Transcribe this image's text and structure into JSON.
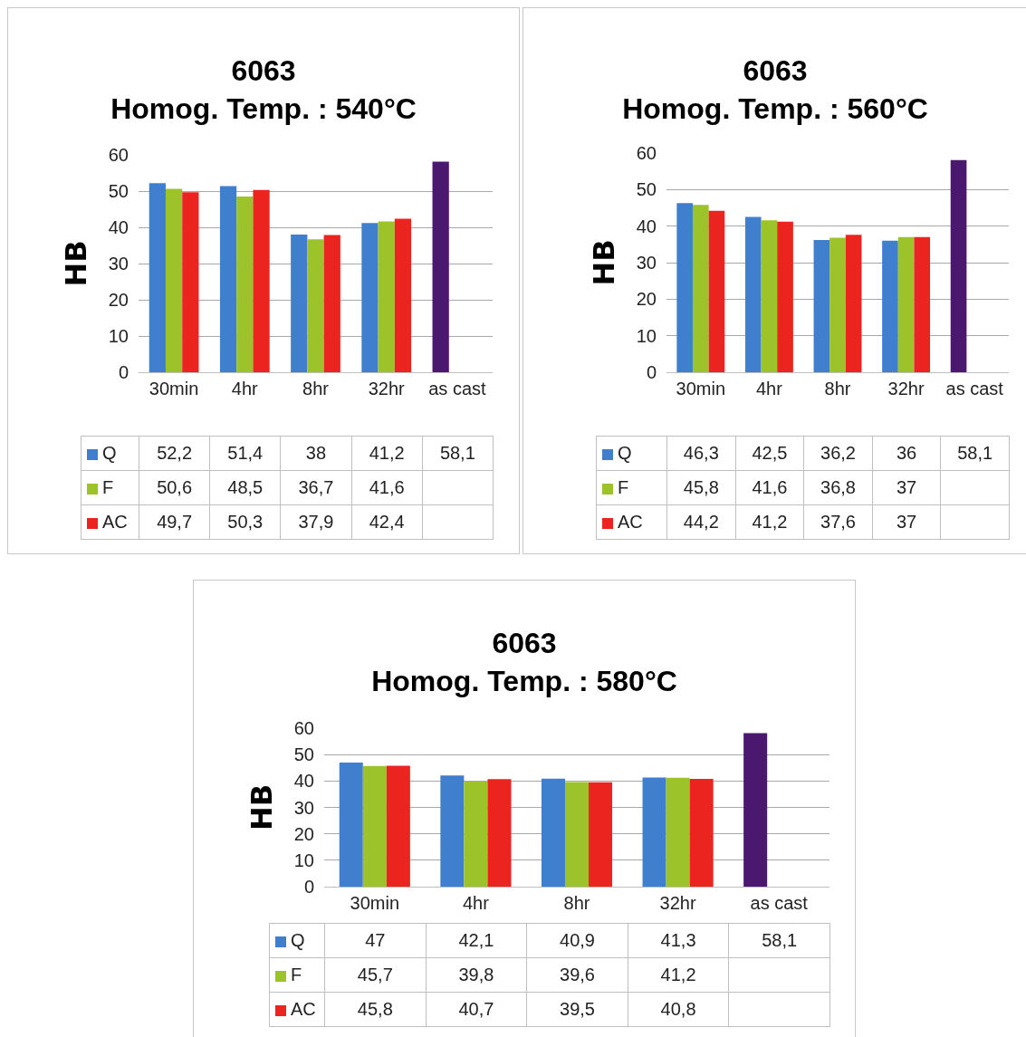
{
  "chart_data": [
    {
      "type": "bar",
      "title": "6063\nHomog. Temp. : 540°C",
      "ylabel": "HB",
      "categories": [
        "30min",
        "4hr",
        "8hr",
        "32hr",
        "as cast"
      ],
      "ylim": [
        0,
        60
      ],
      "yticks": [
        0,
        10,
        20,
        30,
        40,
        50,
        60
      ],
      "grid": "y",
      "legend": "bottom left",
      "series": [
        {
          "name": "Q",
          "color": "#3f7fce",
          "colors": [
            "#3f7fce",
            "#3f7fce",
            "#3f7fce",
            "#3f7fce",
            "#4b1870"
          ],
          "values": [
            52.2,
            51.4,
            38,
            41.2,
            58.1
          ],
          "value_labels": [
            "52,2",
            "51,4",
            "38",
            "41,2",
            "58,1"
          ]
        },
        {
          "name": "F",
          "color": "#9cc32a",
          "values": [
            50.6,
            48.5,
            36.7,
            41.6,
            null
          ],
          "value_labels": [
            "50,6",
            "48,5",
            "36,7",
            "41,6",
            null
          ]
        },
        {
          "name": "AC",
          "color": "#ec2420",
          "values": [
            49.7,
            50.3,
            37.9,
            42.4,
            null
          ],
          "value_labels": [
            "49,7",
            "50,3",
            "37,9",
            "42,4",
            null
          ]
        }
      ]
    },
    {
      "type": "bar",
      "title": "6063\nHomog. Temp. : 560°C",
      "ylabel": "HB",
      "categories": [
        "30min",
        "4hr",
        "8hr",
        "32hr",
        "as cast"
      ],
      "ylim": [
        0,
        60
      ],
      "yticks": [
        0,
        10,
        20,
        30,
        40,
        50,
        60
      ],
      "grid": "y",
      "legend": "bottom left",
      "series": [
        {
          "name": "Q",
          "color": "#3f7fce",
          "colors": [
            "#3f7fce",
            "#3f7fce",
            "#3f7fce",
            "#3f7fce",
            "#4b1870"
          ],
          "values": [
            46.3,
            42.5,
            36.2,
            36,
            58.1
          ],
          "value_labels": [
            "46,3",
            "42,5",
            "36,2",
            "36",
            "58,1"
          ]
        },
        {
          "name": "F",
          "color": "#9cc32a",
          "values": [
            45.8,
            41.6,
            36.8,
            37,
            null
          ],
          "value_labels": [
            "45,8",
            "41,6",
            "36,8",
            "37",
            null
          ]
        },
        {
          "name": "AC",
          "color": "#ec2420",
          "values": [
            44.2,
            41.2,
            37.6,
            37,
            null
          ],
          "value_labels": [
            "44,2",
            "41,2",
            "37,6",
            "37",
            null
          ]
        }
      ]
    },
    {
      "type": "bar",
      "title": "6063\nHomog. Temp. : 580°C",
      "ylabel": "HB",
      "categories": [
        "30min",
        "4hr",
        "8hr",
        "32hr",
        "as cast"
      ],
      "ylim": [
        0,
        60
      ],
      "yticks": [
        0,
        10,
        20,
        30,
        40,
        50,
        60
      ],
      "grid": "y",
      "legend": "bottom left",
      "series": [
        {
          "name": "Q",
          "color": "#3f7fce",
          "colors": [
            "#3f7fce",
            "#3f7fce",
            "#3f7fce",
            "#3f7fce",
            "#4b1870"
          ],
          "values": [
            47,
            42.1,
            40.9,
            41.3,
            58.1
          ],
          "value_labels": [
            "47",
            "42,1",
            "40,9",
            "41,3",
            "58,1"
          ]
        },
        {
          "name": "F",
          "color": "#9cc32a",
          "values": [
            45.7,
            39.8,
            39.6,
            41.2,
            null
          ],
          "value_labels": [
            "45,7",
            "39,8",
            "39,6",
            "41,2",
            null
          ]
        },
        {
          "name": "AC",
          "color": "#ec2420",
          "values": [
            45.8,
            40.7,
            39.5,
            40.8,
            null
          ],
          "value_labels": [
            "45,8",
            "40,7",
            "39,5",
            "40,8",
            null
          ]
        }
      ]
    }
  ]
}
